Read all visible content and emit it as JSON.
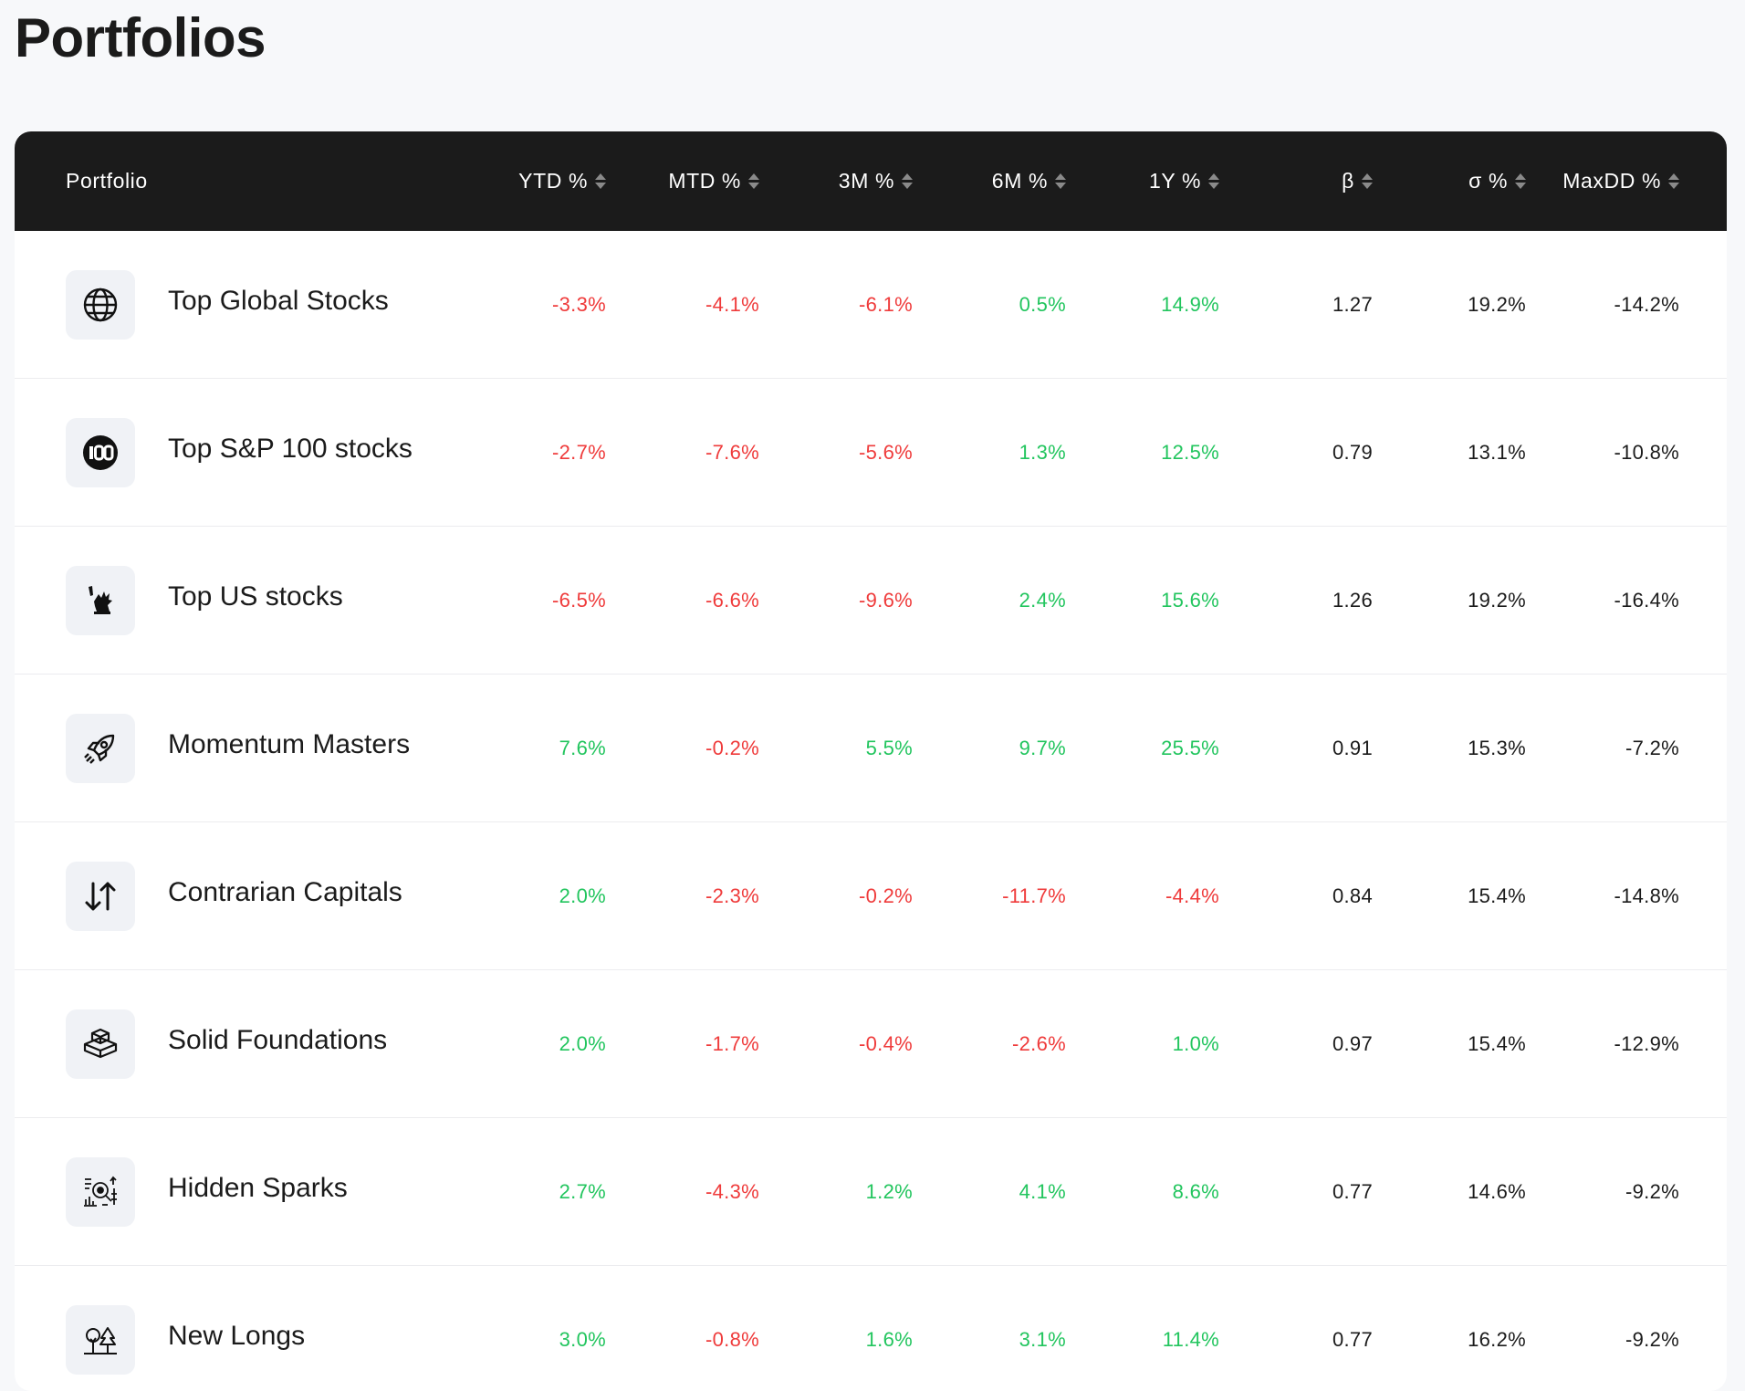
{
  "page": {
    "title": "Portfolios"
  },
  "colors": {
    "positive": "#22c55e",
    "negative": "#ef3b3b",
    "header_bg": "#1b1b1b"
  },
  "table": {
    "columns": [
      {
        "key": "portfolio",
        "label": "Portfolio",
        "sortable": false
      },
      {
        "key": "ytd",
        "label": "YTD %",
        "sortable": true
      },
      {
        "key": "mtd",
        "label": "MTD %",
        "sortable": true
      },
      {
        "key": "m3",
        "label": "3M %",
        "sortable": true
      },
      {
        "key": "m6",
        "label": "6M %",
        "sortable": true
      },
      {
        "key": "y1",
        "label": "1Y %",
        "sortable": true
      },
      {
        "key": "beta",
        "label": "β",
        "sortable": true
      },
      {
        "key": "sigma",
        "label": "σ %",
        "sortable": true
      },
      {
        "key": "maxdd",
        "label": "MaxDD %",
        "sortable": true
      }
    ],
    "rows": [
      {
        "name": "Top Global Stocks",
        "icon": "globe-icon",
        "ytd": "-3.3%",
        "mtd": "-4.1%",
        "m3": "-6.1%",
        "m6": "0.5%",
        "y1": "14.9%",
        "beta": "1.27",
        "sigma": "19.2%",
        "maxdd": "-14.2%"
      },
      {
        "name": "Top S&P 100 stocks",
        "icon": "hundred-badge-icon",
        "ytd": "-2.7%",
        "mtd": "-7.6%",
        "m3": "-5.6%",
        "m6": "1.3%",
        "y1": "12.5%",
        "beta": "0.79",
        "sigma": "13.1%",
        "maxdd": "-10.8%"
      },
      {
        "name": "Top US stocks",
        "icon": "statue-of-liberty-icon",
        "ytd": "-6.5%",
        "mtd": "-6.6%",
        "m3": "-9.6%",
        "m6": "2.4%",
        "y1": "15.6%",
        "beta": "1.26",
        "sigma": "19.2%",
        "maxdd": "-16.4%"
      },
      {
        "name": "Momentum Masters",
        "icon": "rocket-icon",
        "ytd": "7.6%",
        "mtd": "-0.2%",
        "m3": "5.5%",
        "m6": "9.7%",
        "y1": "25.5%",
        "beta": "0.91",
        "sigma": "15.3%",
        "maxdd": "-7.2%"
      },
      {
        "name": "Contrarian Capitals",
        "icon": "arrows-up-down-icon",
        "ytd": "2.0%",
        "mtd": "-2.3%",
        "m3": "-0.2%",
        "m6": "-11.7%",
        "y1": "-4.4%",
        "beta": "0.84",
        "sigma": "15.4%",
        "maxdd": "-14.8%"
      },
      {
        "name": "Solid Foundations",
        "icon": "stacked-blocks-icon",
        "ytd": "2.0%",
        "mtd": "-1.7%",
        "m3": "-0.4%",
        "m6": "-2.6%",
        "y1": "1.0%",
        "beta": "0.97",
        "sigma": "15.4%",
        "maxdd": "-12.9%"
      },
      {
        "name": "Hidden Sparks",
        "icon": "data-analysis-icon",
        "ytd": "2.7%",
        "mtd": "-4.3%",
        "m3": "1.2%",
        "m6": "4.1%",
        "y1": "8.6%",
        "beta": "0.77",
        "sigma": "14.6%",
        "maxdd": "-9.2%"
      },
      {
        "name": "New Longs",
        "icon": "trees-icon",
        "ytd": "3.0%",
        "mtd": "-0.8%",
        "m3": "1.6%",
        "m6": "3.1%",
        "y1": "11.4%",
        "beta": "0.77",
        "sigma": "16.2%",
        "maxdd": "-9.2%"
      }
    ]
  }
}
